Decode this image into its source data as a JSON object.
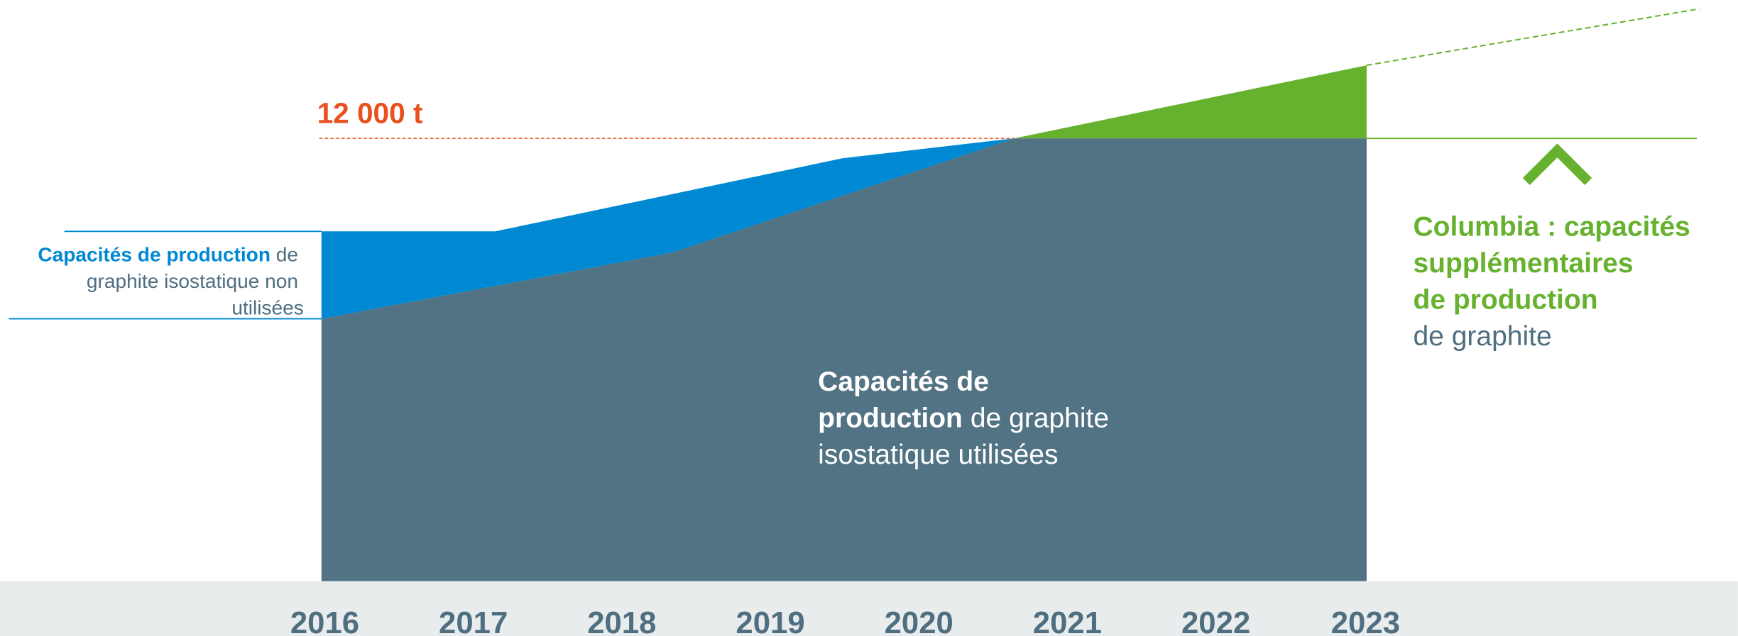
{
  "threshold": "12 000 t",
  "years": [
    "2016",
    "2017",
    "2018",
    "2019",
    "2020",
    "2021",
    "2022",
    "2023"
  ],
  "unused_label": {
    "bold": "Capacités de production",
    "line1_rest": "de",
    "line2": "graphite isostatique non",
    "line3": "utilisées"
  },
  "used_label": {
    "line1_bold": "Capacités de",
    "line2_bold": "production",
    "line2_rest": "de graphite",
    "line3": "isostatique utilisées"
  },
  "columbia_label": {
    "line1": "Columbia : capacités",
    "line2": "supplémentaires",
    "line3": "de production",
    "line4": "de graphite"
  }
}
